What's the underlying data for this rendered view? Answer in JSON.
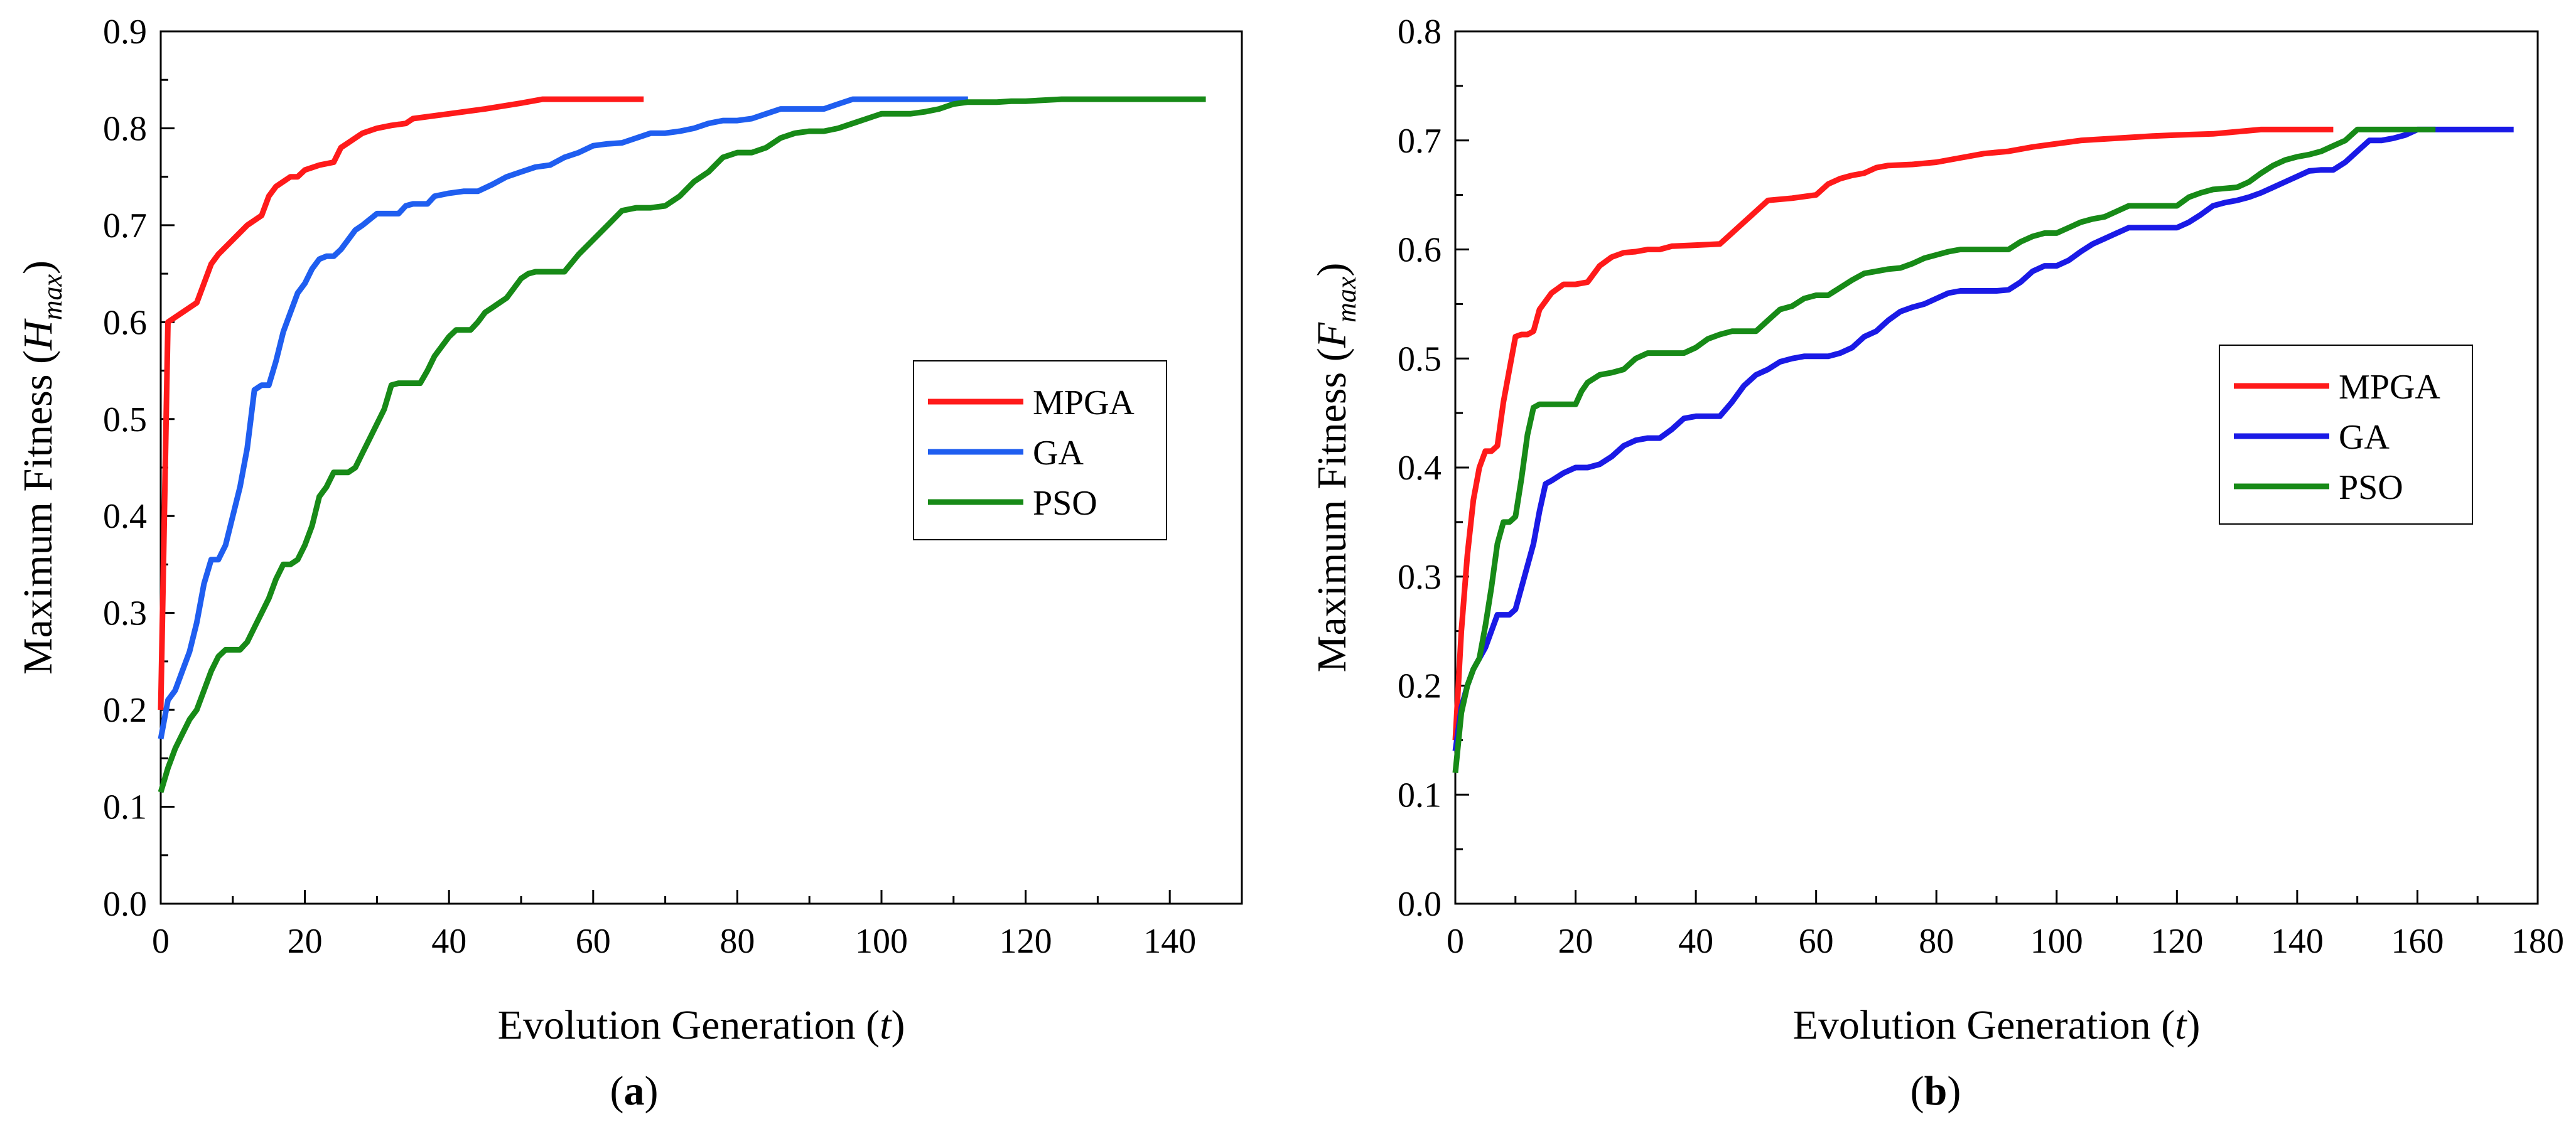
{
  "chart_data": [
    {
      "type": "line",
      "panel_label": "a",
      "xlabel": "Evolution Generation",
      "xlabel_var": "t",
      "ylabel": "Maximum Fitness",
      "ylabel_var": "H",
      "ylabel_sub": "max",
      "xlim": [
        0,
        150
      ],
      "ylim": [
        0,
        0.9
      ],
      "xticks": [
        "0",
        "20",
        "40",
        "60",
        "80",
        "100",
        "120",
        "140"
      ],
      "yticks": [
        "0.0",
        "0.1",
        "0.2",
        "0.3",
        "0.4",
        "0.5",
        "0.6",
        "0.7",
        "0.8",
        "0.9"
      ],
      "grid": false,
      "legend_position": "center-right",
      "series": [
        {
          "name": "MPGA",
          "color": "#ff1a1a",
          "x": [
            0,
            1,
            3,
            5,
            6,
            7,
            8,
            10,
            12,
            14,
            15,
            16,
            17,
            18,
            19,
            20,
            22,
            24,
            25,
            26,
            28,
            30,
            32,
            34,
            35,
            40,
            45,
            50,
            53,
            55,
            60,
            65,
            67
          ],
          "y": [
            0.2,
            0.6,
            0.61,
            0.62,
            0.64,
            0.66,
            0.67,
            0.685,
            0.7,
            0.71,
            0.73,
            0.74,
            0.745,
            0.75,
            0.75,
            0.757,
            0.762,
            0.765,
            0.78,
            0.785,
            0.795,
            0.8,
            0.803,
            0.805,
            0.81,
            0.815,
            0.82,
            0.826,
            0.83,
            0.83,
            0.83,
            0.83,
            0.83
          ]
        },
        {
          "name": "GA",
          "color": "#1f5ef0",
          "x": [
            0,
            1,
            2,
            3,
            4,
            5,
            6,
            7,
            8,
            9,
            10,
            11,
            12,
            13,
            14,
            15,
            16,
            17,
            18,
            19,
            20,
            21,
            22,
            23,
            24,
            25,
            26,
            27,
            28,
            30,
            31,
            32,
            33,
            34,
            35,
            36,
            37,
            38,
            40,
            42,
            44,
            46,
            48,
            50,
            52,
            54,
            56,
            58,
            60,
            62,
            64,
            66,
            68,
            70,
            72,
            74,
            76,
            78,
            80,
            82,
            84,
            86,
            88,
            90,
            92,
            94,
            96,
            98,
            100,
            105,
            110,
            112
          ],
          "y": [
            0.17,
            0.21,
            0.22,
            0.24,
            0.26,
            0.29,
            0.33,
            0.355,
            0.355,
            0.37,
            0.4,
            0.43,
            0.47,
            0.53,
            0.535,
            0.535,
            0.56,
            0.59,
            0.61,
            0.63,
            0.64,
            0.655,
            0.665,
            0.668,
            0.668,
            0.675,
            0.685,
            0.695,
            0.7,
            0.712,
            0.712,
            0.712,
            0.712,
            0.72,
            0.722,
            0.722,
            0.722,
            0.73,
            0.733,
            0.735,
            0.735,
            0.742,
            0.75,
            0.755,
            0.76,
            0.762,
            0.77,
            0.775,
            0.782,
            0.784,
            0.785,
            0.79,
            0.795,
            0.795,
            0.797,
            0.8,
            0.805,
            0.808,
            0.808,
            0.81,
            0.815,
            0.82,
            0.82,
            0.82,
            0.82,
            0.825,
            0.83,
            0.83,
            0.83,
            0.83,
            0.83,
            0.83
          ]
        },
        {
          "name": "PSO",
          "color": "#178a17",
          "x": [
            0,
            1,
            2,
            3,
            4,
            5,
            6,
            7,
            8,
            9,
            10,
            11,
            12,
            13,
            14,
            15,
            16,
            17,
            18,
            19,
            20,
            21,
            22,
            23,
            24,
            25,
            26,
            27,
            28,
            29,
            30,
            31,
            32,
            33,
            34,
            35,
            36,
            37,
            38,
            39,
            40,
            41,
            42,
            43,
            44,
            45,
            46,
            47,
            48,
            49,
            50,
            51,
            52,
            53,
            54,
            56,
            58,
            60,
            62,
            64,
            66,
            68,
            70,
            72,
            74,
            76,
            78,
            80,
            82,
            84,
            86,
            88,
            90,
            92,
            94,
            96,
            98,
            100,
            102,
            104,
            106,
            108,
            110,
            112,
            114,
            116,
            118,
            120,
            125,
            130,
            135,
            140,
            145
          ],
          "y": [
            0.115,
            0.14,
            0.16,
            0.175,
            0.19,
            0.2,
            0.22,
            0.24,
            0.255,
            0.262,
            0.262,
            0.262,
            0.27,
            0.285,
            0.3,
            0.315,
            0.335,
            0.35,
            0.35,
            0.355,
            0.37,
            0.39,
            0.42,
            0.43,
            0.445,
            0.445,
            0.445,
            0.45,
            0.465,
            0.48,
            0.495,
            0.51,
            0.535,
            0.537,
            0.537,
            0.537,
            0.537,
            0.55,
            0.565,
            0.575,
            0.585,
            0.592,
            0.592,
            0.592,
            0.6,
            0.61,
            0.615,
            0.62,
            0.625,
            0.635,
            0.645,
            0.65,
            0.652,
            0.652,
            0.652,
            0.652,
            0.67,
            0.685,
            0.7,
            0.715,
            0.718,
            0.718,
            0.72,
            0.73,
            0.745,
            0.755,
            0.77,
            0.775,
            0.775,
            0.78,
            0.79,
            0.795,
            0.797,
            0.797,
            0.8,
            0.805,
            0.81,
            0.815,
            0.815,
            0.815,
            0.817,
            0.82,
            0.825,
            0.827,
            0.827,
            0.827,
            0.828,
            0.828,
            0.83,
            0.83,
            0.83,
            0.83,
            0.83
          ]
        }
      ]
    },
    {
      "type": "line",
      "panel_label": "b",
      "xlabel": "Evolution Generation",
      "xlabel_var": "t",
      "ylabel": "Maximum Fitness",
      "ylabel_var": "F",
      "ylabel_sub": "max",
      "xlim": [
        0,
        180
      ],
      "ylim": [
        0,
        0.8
      ],
      "xticks": [
        "0",
        "20",
        "40",
        "60",
        "80",
        "100",
        "120",
        "140",
        "160",
        "180"
      ],
      "yticks": [
        "0.0",
        "0.1",
        "0.2",
        "0.3",
        "0.4",
        "0.5",
        "0.6",
        "0.7",
        "0.8"
      ],
      "grid": false,
      "legend_position": "center-right",
      "series": [
        {
          "name": "MPGA",
          "color": "#ff1a1a",
          "x": [
            0,
            1,
            2,
            3,
            4,
            5,
            6,
            7,
            8,
            9,
            10,
            11,
            12,
            13,
            14,
            16,
            18,
            20,
            22,
            24,
            26,
            28,
            30,
            32,
            34,
            36,
            40,
            44,
            46,
            48,
            50,
            52,
            56,
            60,
            62,
            64,
            66,
            68,
            70,
            72,
            76,
            80,
            84,
            88,
            92,
            96,
            100,
            104,
            110,
            116,
            120,
            126,
            130,
            134,
            140,
            146
          ],
          "y": [
            0.15,
            0.25,
            0.32,
            0.37,
            0.4,
            0.415,
            0.415,
            0.42,
            0.46,
            0.49,
            0.52,
            0.522,
            0.522,
            0.525,
            0.545,
            0.56,
            0.568,
            0.568,
            0.57,
            0.585,
            0.593,
            0.597,
            0.598,
            0.6,
            0.6,
            0.603,
            0.604,
            0.605,
            0.615,
            0.625,
            0.635,
            0.645,
            0.647,
            0.65,
            0.66,
            0.665,
            0.668,
            0.67,
            0.675,
            0.677,
            0.678,
            0.68,
            0.684,
            0.688,
            0.69,
            0.694,
            0.697,
            0.7,
            0.702,
            0.704,
            0.705,
            0.706,
            0.708,
            0.71,
            0.71,
            0.71
          ]
        },
        {
          "name": "GA",
          "color": "#1a1ae6",
          "x": [
            0,
            1,
            2,
            3,
            4,
            5,
            6,
            7,
            8,
            9,
            10,
            11,
            12,
            13,
            14,
            15,
            16,
            18,
            20,
            22,
            24,
            26,
            28,
            30,
            32,
            34,
            36,
            38,
            40,
            42,
            44,
            46,
            48,
            50,
            52,
            54,
            56,
            58,
            60,
            62,
            64,
            66,
            68,
            70,
            72,
            74,
            76,
            78,
            80,
            82,
            84,
            86,
            88,
            90,
            92,
            94,
            96,
            98,
            100,
            102,
            104,
            106,
            108,
            110,
            112,
            114,
            116,
            118,
            120,
            122,
            124,
            126,
            128,
            130,
            132,
            134,
            136,
            138,
            140,
            142,
            144,
            146,
            148,
            150,
            152,
            154,
            156,
            158,
            160,
            162,
            164,
            170,
            176
          ],
          "y": [
            0.14,
            0.18,
            0.2,
            0.215,
            0.225,
            0.235,
            0.25,
            0.265,
            0.265,
            0.265,
            0.27,
            0.29,
            0.31,
            0.33,
            0.36,
            0.385,
            0.388,
            0.395,
            0.4,
            0.4,
            0.403,
            0.41,
            0.42,
            0.425,
            0.427,
            0.427,
            0.435,
            0.445,
            0.447,
            0.447,
            0.447,
            0.46,
            0.475,
            0.485,
            0.49,
            0.497,
            0.5,
            0.502,
            0.502,
            0.502,
            0.505,
            0.51,
            0.52,
            0.525,
            0.535,
            0.543,
            0.547,
            0.55,
            0.555,
            0.56,
            0.562,
            0.562,
            0.562,
            0.562,
            0.563,
            0.57,
            0.58,
            0.585,
            0.585,
            0.59,
            0.598,
            0.605,
            0.61,
            0.615,
            0.62,
            0.62,
            0.62,
            0.62,
            0.62,
            0.625,
            0.632,
            0.64,
            0.643,
            0.645,
            0.648,
            0.652,
            0.657,
            0.662,
            0.667,
            0.672,
            0.673,
            0.673,
            0.68,
            0.69,
            0.7,
            0.7,
            0.702,
            0.705,
            0.71,
            0.71,
            0.71,
            0.71,
            0.71
          ]
        },
        {
          "name": "PSO",
          "color": "#178a17",
          "x": [
            0,
            1,
            2,
            3,
            4,
            5,
            6,
            7,
            8,
            9,
            10,
            11,
            12,
            13,
            14,
            16,
            18,
            20,
            21,
            22,
            24,
            26,
            28,
            30,
            32,
            34,
            36,
            38,
            40,
            42,
            44,
            46,
            48,
            50,
            52,
            54,
            56,
            58,
            60,
            62,
            64,
            66,
            68,
            70,
            72,
            74,
            76,
            78,
            80,
            82,
            84,
            86,
            88,
            90,
            92,
            94,
            96,
            98,
            100,
            102,
            104,
            106,
            108,
            110,
            112,
            114,
            116,
            118,
            120,
            122,
            124,
            126,
            128,
            130,
            132,
            134,
            136,
            138,
            140,
            142,
            144,
            146,
            148,
            150,
            155,
            160,
            163
          ],
          "y": [
            0.12,
            0.175,
            0.2,
            0.215,
            0.225,
            0.255,
            0.29,
            0.33,
            0.35,
            0.35,
            0.355,
            0.39,
            0.43,
            0.455,
            0.458,
            0.458,
            0.458,
            0.458,
            0.47,
            0.478,
            0.485,
            0.487,
            0.49,
            0.5,
            0.505,
            0.505,
            0.505,
            0.505,
            0.51,
            0.518,
            0.522,
            0.525,
            0.525,
            0.525,
            0.535,
            0.545,
            0.548,
            0.555,
            0.558,
            0.558,
            0.565,
            0.572,
            0.578,
            0.58,
            0.582,
            0.583,
            0.587,
            0.592,
            0.595,
            0.598,
            0.6,
            0.6,
            0.6,
            0.6,
            0.6,
            0.607,
            0.612,
            0.615,
            0.615,
            0.62,
            0.625,
            0.628,
            0.63,
            0.635,
            0.64,
            0.64,
            0.64,
            0.64,
            0.64,
            0.648,
            0.652,
            0.655,
            0.656,
            0.657,
            0.662,
            0.67,
            0.677,
            0.682,
            0.685,
            0.687,
            0.69,
            0.695,
            0.7,
            0.71,
            0.71,
            0.71,
            0.71
          ]
        }
      ]
    }
  ]
}
